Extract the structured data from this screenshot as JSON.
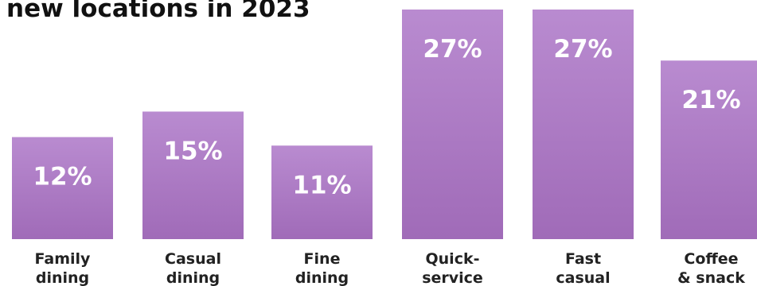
{
  "chart_data": {
    "type": "bar",
    "title": "new locations in 2023",
    "xlabel": "",
    "ylabel": "",
    "ylim": [
      0,
      27
    ],
    "grid": false,
    "legend": "none",
    "unit": "%",
    "categories": [
      [
        "Family",
        "dining"
      ],
      [
        "Casual",
        "dining"
      ],
      [
        "Fine",
        "dining"
      ],
      [
        "Quick-",
        "service"
      ],
      [
        "Fast",
        "casual"
      ],
      [
        "Coffee",
        "& snack"
      ]
    ],
    "values": [
      12,
      15,
      11,
      27,
      27,
      21
    ],
    "value_labels": [
      "12%",
      "15%",
      "11%",
      "27%",
      "27%",
      "21%"
    ]
  },
  "colors": {
    "bar_top": "#b98bd0",
    "bar_bottom": "#a06bb8",
    "value_text": "#ffffff",
    "label_text": "#222222",
    "title_text": "#111111"
  }
}
